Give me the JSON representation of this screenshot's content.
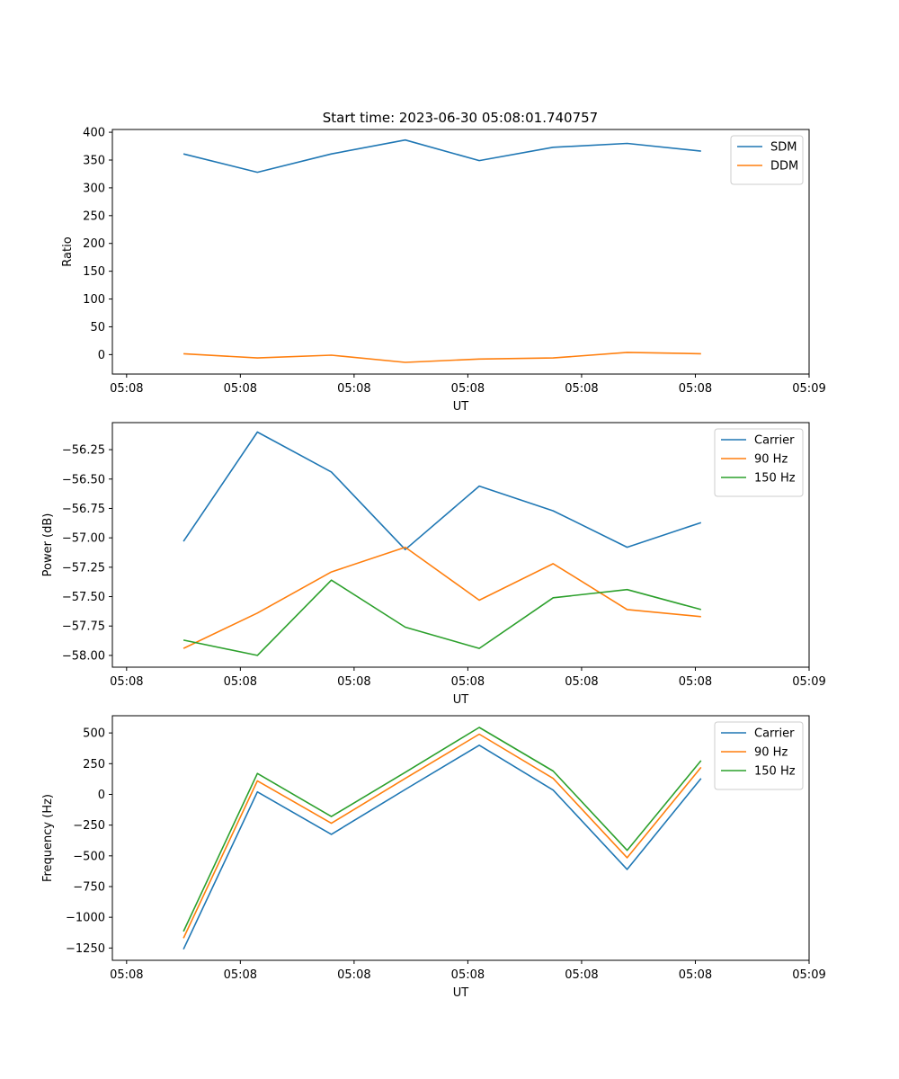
{
  "figure": {
    "title": "Start time: 2023-06-30 05:08:01.740757"
  },
  "chart_data": [
    {
      "type": "line",
      "title": "Start time: 2023-06-30 05:08:01.740757",
      "xlabel": "UT",
      "ylabel": "Ratio",
      "legend_position": "top-right",
      "grid": false,
      "x_ticks": [
        0,
        1,
        2,
        3,
        4,
        5,
        6
      ],
      "x_tick_labels": [
        "05:08",
        "05:08",
        "05:08",
        "05:08",
        "05:08",
        "05:08",
        "05:09"
      ],
      "xlim": [
        -0.125,
        6.0
      ],
      "x": [
        0.5,
        1.15,
        1.8,
        2.45,
        3.1,
        3.75,
        4.4,
        5.05
      ],
      "ylim": [
        -35,
        405
      ],
      "y_ticks": [
        0,
        50,
        100,
        150,
        200,
        250,
        300,
        350,
        400
      ],
      "y_tick_labels": [
        "0",
        "50",
        "100",
        "150",
        "200",
        "250",
        "300",
        "350",
        "400"
      ],
      "series": [
        {
          "name": "SDM",
          "color": "#1f77b4",
          "values": [
            361,
            328,
            361,
            386,
            349,
            373,
            380,
            366
          ]
        },
        {
          "name": "DDM",
          "color": "#ff7f0e",
          "values": [
            1.5,
            -6,
            -1,
            -14,
            -8,
            -6,
            4,
            1.5
          ]
        }
      ]
    },
    {
      "type": "line",
      "title": "",
      "xlabel": "UT",
      "ylabel": "Power (dB)",
      "legend_position": "top-right",
      "grid": false,
      "x_ticks": [
        0,
        1,
        2,
        3,
        4,
        5,
        6
      ],
      "x_tick_labels": [
        "05:08",
        "05:08",
        "05:08",
        "05:08",
        "05:08",
        "05:08",
        "05:09"
      ],
      "xlim": [
        -0.125,
        6.0
      ],
      "x": [
        0.5,
        1.15,
        1.8,
        2.45,
        3.1,
        3.75,
        4.4,
        5.05
      ],
      "ylim": [
        -58.1,
        -56.02
      ],
      "y_ticks": [
        -58.0,
        -57.75,
        -57.5,
        -57.25,
        -57.0,
        -56.75,
        -56.5,
        -56.25
      ],
      "y_tick_labels": [
        "−58.00",
        "−57.75",
        "−57.50",
        "−57.25",
        "−57.00",
        "−56.75",
        "−56.50",
        "−56.25"
      ],
      "series": [
        {
          "name": "Carrier",
          "color": "#1f77b4",
          "values": [
            -57.03,
            -56.1,
            -56.44,
            -57.1,
            -56.56,
            -56.77,
            -57.08,
            -56.87
          ]
        },
        {
          "name": "90 Hz",
          "color": "#ff7f0e",
          "values": [
            -57.94,
            -57.64,
            -57.29,
            -57.08,
            -57.53,
            -57.22,
            -57.61,
            -57.67
          ]
        },
        {
          "name": "150 Hz",
          "color": "#2ca02c",
          "values": [
            -57.87,
            -58.0,
            -57.36,
            -57.76,
            -57.94,
            -57.51,
            -57.44,
            -57.61
          ]
        }
      ]
    },
    {
      "type": "line",
      "title": "",
      "xlabel": "UT",
      "ylabel": "Frequency (Hz)",
      "legend_position": "top-right",
      "grid": false,
      "x_ticks": [
        0,
        1,
        2,
        3,
        4,
        5,
        6
      ],
      "x_tick_labels": [
        "05:08",
        "05:08",
        "05:08",
        "05:08",
        "05:08",
        "05:08",
        "05:09"
      ],
      "xlim": [
        -0.125,
        6.0
      ],
      "x": [
        0.5,
        1.15,
        1.8,
        2.45,
        3.1,
        3.75,
        4.4,
        5.05
      ],
      "ylim": [
        -1350,
        640
      ],
      "y_ticks": [
        -1250,
        -1000,
        -750,
        -500,
        -250,
        0,
        250,
        500
      ],
      "y_tick_labels": [
        "−1250",
        "−1000",
        "−750",
        "−500",
        "−250",
        "0",
        "250",
        "500"
      ],
      "series": [
        {
          "name": "Carrier",
          "color": "#1f77b4",
          "values": [
            -1260,
            20,
            -325,
            40,
            400,
            35,
            -610,
            130
          ]
        },
        {
          "name": "90 Hz",
          "color": "#ff7f0e",
          "values": [
            -1170,
            110,
            -235,
            130,
            490,
            130,
            -515,
            220
          ]
        },
        {
          "name": "150 Hz",
          "color": "#2ca02c",
          "values": [
            -1115,
            170,
            -180,
            180,
            545,
            190,
            -455,
            275
          ]
        }
      ]
    }
  ]
}
